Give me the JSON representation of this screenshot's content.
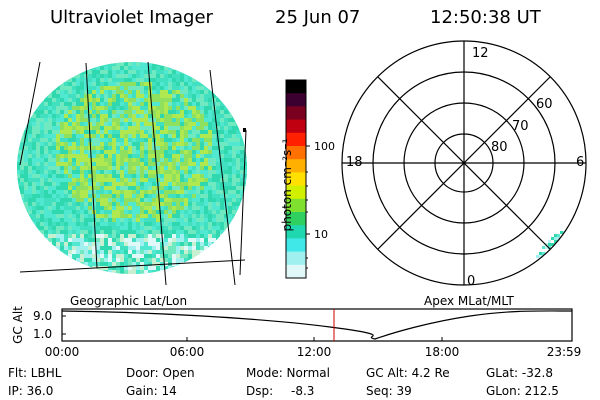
{
  "header": {
    "instrument": "Ultraviolet Imager",
    "date": "25 Jun 07",
    "time": "12:50:38 UT"
  },
  "colorbar": {
    "label": "photon cm⁻²s⁻¹",
    "ticks": [
      "100",
      "10"
    ],
    "colors": [
      "#000000",
      "#3b0030",
      "#7a0020",
      "#c00010",
      "#ff2000",
      "#ff7000",
      "#ffb000",
      "#ffe000",
      "#d0f000",
      "#80e030",
      "#30d060",
      "#20d8b0",
      "#40e8e8",
      "#a0f0f0",
      "#e0f8f8"
    ]
  },
  "polar_plot": {
    "mlt_labels": {
      "top": "12",
      "right": "6",
      "bottom": "0",
      "left": "18"
    },
    "lat_labels": [
      "60",
      "70",
      "80"
    ]
  },
  "map_labels": {
    "geographic": "Geographic Lat/Lon",
    "apex": "Apex MLat/MLT"
  },
  "altitude_plot": {
    "ylabel": "GC Alt",
    "yticks": [
      "9.0",
      "1.0"
    ],
    "xticks": [
      "00:00",
      "06:00",
      "12:00",
      "18:00",
      "23:59"
    ],
    "current_time_hours": 12.84,
    "min_time_hours": 14.8
  },
  "info": {
    "filter": "Flt: LBHL",
    "ip": "IP: 36.0",
    "door": "Door: Open",
    "gain": "Gain: 14",
    "mode": "Mode: Normal",
    "dsp_label": "Dsp:",
    "dsp_value": "-8.3",
    "gc_alt": "GC Alt: 4.2 Re",
    "seq": "Seq: 39",
    "glat": "GLat: -32.8",
    "glon": "GLon: 212.5"
  }
}
